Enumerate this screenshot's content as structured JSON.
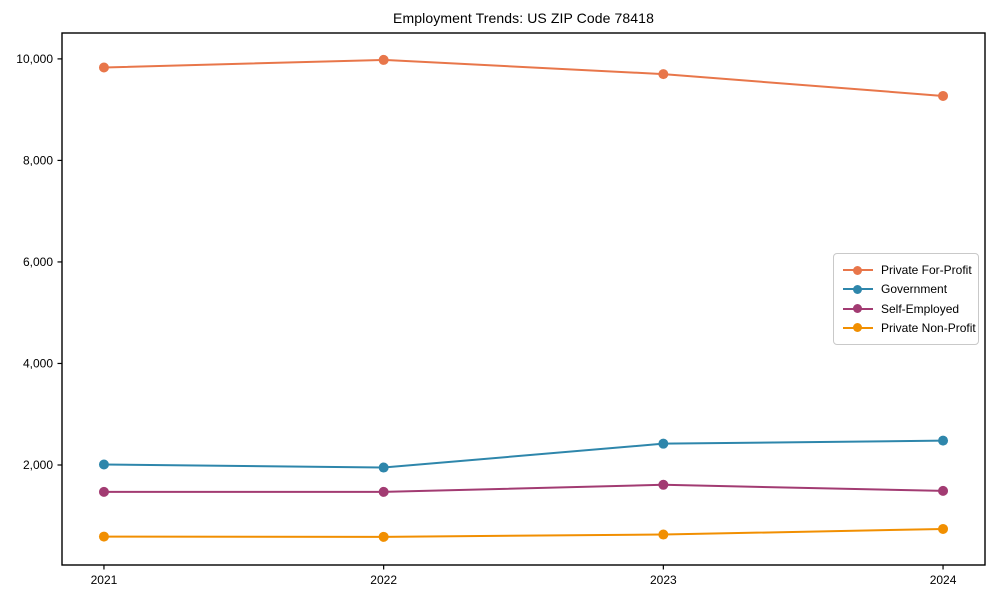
{
  "chart_data": {
    "type": "line",
    "title": "Employment Trends: US ZIP Code 78418",
    "x": [
      2021,
      2022,
      2023,
      2024
    ],
    "x_tick_labels": [
      "2021",
      "2022",
      "2023",
      "2024"
    ],
    "series": [
      {
        "name": "Private For-Profit",
        "color": "#E8764A",
        "values": [
          9830,
          9980,
          9700,
          9270
        ]
      },
      {
        "name": "Government",
        "color": "#2E86AB",
        "values": [
          2010,
          1950,
          2420,
          2480
        ]
      },
      {
        "name": "Self-Employed",
        "color": "#A23B72",
        "values": [
          1470,
          1470,
          1610,
          1490
        ]
      },
      {
        "name": "Private Non-Profit",
        "color": "#F18F01",
        "values": [
          590,
          585,
          630,
          740
        ]
      }
    ],
    "xlabel": "",
    "ylabel": "",
    "xlim": [
      2020.85,
      2024.15
    ],
    "ylim": [
      30,
      10510
    ],
    "yticks": [
      2000,
      4000,
      6000,
      8000,
      10000
    ],
    "ytick_labels": [
      "2,000",
      "4,000",
      "6,000",
      "8,000",
      "10,000"
    ],
    "grid": false,
    "legend_position": "center-right",
    "axis_color": "#000000",
    "background_color": "#ffffff"
  }
}
